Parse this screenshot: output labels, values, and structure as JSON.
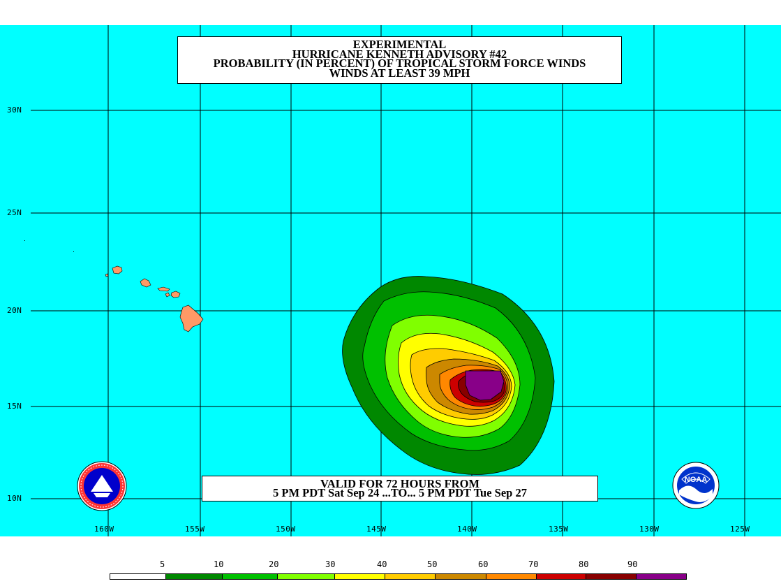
{
  "title": {
    "line1": "EXPERIMENTAL",
    "line2": "HURRICANE KENNETH ADVISORY #42",
    "line3": "PROBABILITY (IN PERCENT) OF TROPICAL STORM FORCE WINDS",
    "line4": "WINDS AT LEAST 39 MPH"
  },
  "valid": {
    "line1": "VALID FOR 72 HOURS FROM",
    "line2": "5 PM PDT Sat Sep 24 ...TO... 5 PM PDT Tue Sep 27"
  },
  "latitudes": [
    "30N",
    "25N",
    "20N",
    "15N",
    "10N"
  ],
  "longitudes": [
    "160W",
    "155W",
    "150W",
    "145W",
    "140W",
    "135W",
    "130W",
    "125W"
  ],
  "legend": {
    "values": [
      "5",
      "10",
      "20",
      "30",
      "40",
      "50",
      "60",
      "70",
      "80",
      "90"
    ],
    "colors": [
      "#ffffff",
      "#008800",
      "#00c000",
      "#80ff00",
      "#ffff00",
      "#ffcc00",
      "#cc8800",
      "#ff8800",
      "#cc0000",
      "#880000",
      "#880088"
    ]
  },
  "colors": {
    "ocean": "#00ffff",
    "land": "#ff9966"
  },
  "logos": {
    "left": "nws-logo",
    "right": "noaa-logo",
    "right_text": "NOAA"
  }
}
